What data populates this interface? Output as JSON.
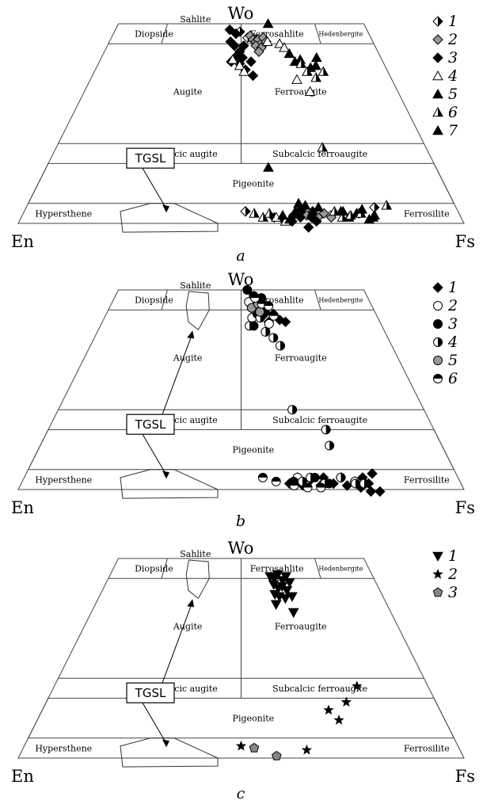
{
  "chart_data": [
    {
      "panel_label": "a",
      "type": "scatter",
      "vertices": {
        "top": "Wo",
        "left": "En",
        "right": "Fs"
      },
      "fields": [
        "Diopside",
        "Sahlite",
        "Ferrosahlite",
        "Hedenbergite",
        "Augite",
        "Ferroaugite",
        "Subcalcic augite",
        "Subcalcic ferroaugite",
        "Pigeonite",
        "Hypersthene",
        "Ferrosilite"
      ],
      "tgsl_label": "TGSL",
      "legend": [
        "1",
        "2",
        "3",
        "4",
        "5",
        "6",
        "7"
      ],
      "series": [
        {
          "legend_index": 0,
          "marker": "diamond-half",
          "color": "#000000",
          "points": [
            [
              49.5,
              48
            ],
            [
              52.5,
              46.5
            ],
            [
              55.5,
              46
            ],
            [
              51,
              3
            ],
            [
              64,
              2.5
            ],
            [
              70.5,
              2
            ],
            [
              77,
              2.5
            ],
            [
              81,
              4
            ]
          ]
        },
        {
          "legend_index": 1,
          "marker": "diamond",
          "color": "#999999",
          "points": [
            [
              53.5,
              47
            ],
            [
              54.5,
              46
            ],
            [
              55.5,
              45.5
            ],
            [
              56.5,
              46
            ],
            [
              57.5,
              45
            ],
            [
              58.5,
              46.5
            ],
            [
              55.5,
              44.5
            ],
            [
              57.5,
              44
            ],
            [
              59.5,
              45.5
            ],
            [
              56.5,
              43
            ],
            [
              63.5,
              3.5
            ],
            [
              65,
              2
            ],
            [
              66.5,
              3
            ],
            [
              67.5,
              1.5
            ],
            [
              69,
              2.5
            ],
            [
              70.5,
              1.5
            ]
          ]
        },
        {
          "legend_index": 2,
          "marker": "diamond",
          "color": "#000000",
          "points": [
            [
              45.5,
              48.5
            ],
            [
              46,
              45.5
            ],
            [
              47.5,
              44.5
            ],
            [
              48,
              47.5
            ],
            [
              49.5,
              43
            ],
            [
              51,
              44.5
            ],
            [
              48.5,
              42
            ],
            [
              50.5,
              41.5
            ],
            [
              46.5,
              40.5
            ],
            [
              49.5,
              40
            ],
            [
              51.5,
              38.5
            ],
            [
              53.5,
              40.5
            ],
            [
              54,
              37
            ],
            [
              57.5,
              1.5
            ],
            [
              59.5,
              1
            ],
            [
              61.5,
              0.5
            ],
            [
              62,
              2
            ],
            [
              63.5,
              1.5
            ],
            [
              64,
              3.5
            ],
            [
              66,
              1.5
            ],
            [
              67,
              0.5
            ],
            [
              65,
              -1
            ]
          ]
        },
        {
          "legend_index": 3,
          "marker": "triangle-open",
          "color": "#000000",
          "points": [
            [
              60,
              45.5
            ],
            [
              64.5,
              45
            ],
            [
              66,
              44
            ],
            [
              47,
              41
            ],
            [
              49.5,
              39.5
            ],
            [
              51,
              38
            ],
            [
              68.5,
              36
            ],
            [
              72,
              33
            ],
            [
              58,
              1.5
            ],
            [
              60,
              0.5
            ]
          ]
        },
        {
          "legend_index": 4,
          "marker": "triangle",
          "color": "#000000",
          "points": [
            [
              61,
              50
            ],
            [
              67.5,
              42.5
            ],
            [
              69,
              40.5
            ],
            [
              71,
              41
            ],
            [
              74,
              39
            ],
            [
              76,
              39.5
            ],
            [
              57,
              14
            ],
            [
              59.5,
              2
            ],
            [
              61,
              1
            ],
            [
              62.5,
              3
            ],
            [
              63.5,
              5
            ],
            [
              65,
              4.5
            ],
            [
              66.5,
              3
            ],
            [
              68,
              4
            ],
            [
              73,
              3
            ],
            [
              74.5,
              1.5
            ],
            [
              76.5,
              2.5
            ],
            [
              79,
              1
            ],
            [
              80.5,
              2
            ]
          ]
        },
        {
          "legend_index": 5,
          "marker": "triangle-half",
          "color": "#000000",
          "points": [
            [
              71,
              40
            ],
            [
              72.5,
              38
            ],
            [
              75,
              36.5
            ],
            [
              78,
              38
            ],
            [
              72,
              19
            ],
            [
              53,
              2.5
            ],
            [
              55,
              1.5
            ],
            [
              56.5,
              2.5
            ],
            [
              71.5,
              3
            ],
            [
              73,
              1.5
            ],
            [
              75,
              2
            ],
            [
              77.5,
              2.5
            ],
            [
              84,
              4.5
            ]
          ]
        },
        {
          "legend_index": 6,
          "marker": "triangle",
          "color": "#000000",
          "points": [
            [
              77,
              41.5
            ],
            [
              73.5,
              3
            ],
            [
              78,
              3.5
            ],
            [
              80,
              1.5
            ]
          ]
        }
      ]
    },
    {
      "panel_label": "b",
      "type": "scatter",
      "vertices": {
        "top": "Wo",
        "left": "En",
        "right": "Fs"
      },
      "fields": [
        "Diopside",
        "Sahlite",
        "Ferrosahlite",
        "Hedenbergite",
        "Augite",
        "Ferroaugite",
        "Subcalcic augite",
        "Subcalcic ferroaugite",
        "Pigeonite",
        "Hypersthene",
        "Ferrosilite"
      ],
      "tgsl_label": "TGSL",
      "legend": [
        "1",
        "2",
        "3",
        "4",
        "5",
        "6"
      ],
      "series": [
        {
          "legend_index": 0,
          "marker": "diamond",
          "color": "#000000",
          "points": [
            [
              56,
              44
            ],
            [
              58,
              43.5
            ],
            [
              60,
              42
            ],
            [
              62,
              44
            ],
            [
              64,
              42.5
            ],
            [
              66,
              42
            ],
            [
              61,
              1.5
            ],
            [
              63,
              3
            ],
            [
              64,
              1
            ],
            [
              66,
              2.5
            ],
            [
              68,
              1
            ],
            [
              69,
              3
            ],
            [
              71,
              1.5
            ],
            [
              73,
              3
            ],
            [
              74,
              1
            ],
            [
              76,
              2
            ],
            [
              77,
              0.5
            ],
            [
              78,
              3
            ],
            [
              79,
              1.5
            ],
            [
              80.5,
              4
            ],
            [
              79,
              -0.5
            ],
            [
              81,
              -0.5
            ]
          ]
        },
        {
          "legend_index": 1,
          "marker": "circle-open",
          "color": "#000000",
          "points": [
            [
              53,
              47
            ],
            [
              55,
              45
            ],
            [
              57,
              46
            ],
            [
              54,
              43
            ],
            [
              60,
              41.5
            ],
            [
              63,
              3
            ],
            [
              76,
              2
            ]
          ]
        },
        {
          "legend_index": 2,
          "marker": "circle",
          "color": "#000000",
          "points": [
            [
              52.5,
              50
            ],
            [
              55,
              48.5
            ],
            [
              58,
              48
            ],
            [
              54.5,
              41
            ],
            [
              56,
              44
            ],
            [
              59,
              44.5
            ],
            [
              62,
              2
            ],
            [
              67,
              3
            ],
            [
              70,
              1.5
            ]
          ]
        },
        {
          "legend_index": 3,
          "marker": "circle-half-v",
          "color": "#000000",
          "points": [
            [
              53,
              41
            ],
            [
              57,
              43
            ],
            [
              58.5,
              39.5
            ],
            [
              61,
              38
            ],
            [
              63,
              36
            ],
            [
              64,
              20
            ],
            [
              72,
              15
            ],
            [
              72,
              11
            ],
            [
              73,
              3
            ],
            [
              76,
              1.5
            ],
            [
              78,
              1.5
            ],
            [
              64,
              2
            ],
            [
              66,
              3
            ],
            [
              69,
              1.5
            ]
          ]
        },
        {
          "legend_index": 4,
          "marker": "circle",
          "color": "#999999",
          "points": [
            [
              54,
              45.5
            ],
            [
              56.5,
              46.5
            ],
            [
              57,
              44.5
            ]
          ]
        },
        {
          "legend_index": 5,
          "marker": "circle-half-h",
          "color": "#000000",
          "points": [
            [
              55.5,
              48
            ],
            [
              58,
              46.5
            ],
            [
              60.5,
              46
            ],
            [
              62,
              43.5
            ],
            [
              55,
              3
            ],
            [
              58,
              2
            ],
            [
              62,
              1
            ],
            [
              65,
              0.5
            ],
            [
              68,
              0.5
            ]
          ]
        }
      ]
    },
    {
      "panel_label": "c",
      "type": "scatter",
      "vertices": {
        "top": "Wo",
        "left": "En",
        "right": "Fs"
      },
      "fields": [
        "Diopside",
        "Sahlite",
        "Ferrosahlite",
        "Hedenbergite",
        "Augite",
        "Ferroaugite",
        "Subcalcic augite",
        "Subcalcic ferroaugite",
        "Pigeonite",
        "Hypersthene",
        "Ferrosilite"
      ],
      "tgsl_label": "TGSL",
      "legend": [
        "1",
        "2",
        "3"
      ],
      "series": [
        {
          "legend_index": 0,
          "marker": "triangle-down",
          "color": "#000000",
          "points": [
            [
              61,
              45.5
            ],
            [
              62.5,
              45
            ],
            [
              64,
              46
            ],
            [
              65.5,
              44.5
            ],
            [
              67,
              45.5
            ],
            [
              62,
              43.5
            ],
            [
              63.5,
              42.5
            ],
            [
              65,
              43
            ],
            [
              66.5,
              42
            ],
            [
              68,
              44
            ],
            [
              62,
              41
            ],
            [
              63.5,
              40.5
            ],
            [
              65.5,
              40
            ],
            [
              68,
              40.5
            ],
            [
              62,
              38.5
            ],
            [
              67.5,
              36.5
            ]
          ]
        },
        {
          "legend_index": 1,
          "marker": "star",
          "color": "#000000",
          "points": [
            [
              50,
              3
            ],
            [
              65,
              2
            ],
            [
              72,
              12
            ],
            [
              74,
              9.5
            ],
            [
              77,
              14
            ],
            [
              81,
              18
            ]
          ]
        },
        {
          "legend_index": 2,
          "marker": "pentagon",
          "color": "#888888",
          "points": [
            [
              53,
              2.5
            ],
            [
              58,
              0.5
            ]
          ]
        }
      ]
    }
  ]
}
